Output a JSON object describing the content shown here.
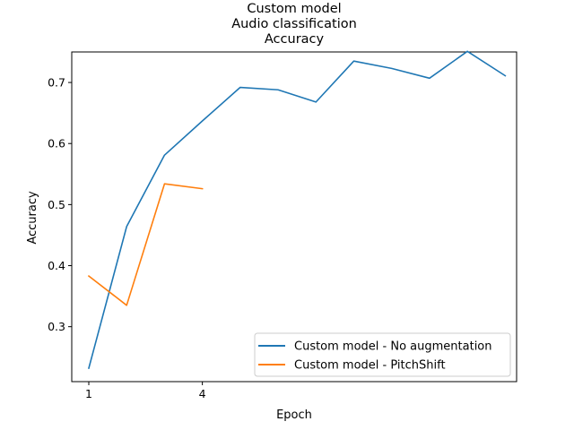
{
  "chart_data": {
    "type": "line",
    "title_lines": [
      "Custom model",
      "Audio classification",
      "Accuracy"
    ],
    "xlabel": "Epoch",
    "ylabel": "Accuracy",
    "xlim": [
      0.55,
      12.3
    ],
    "ylim": [
      0.21,
      0.75
    ],
    "xticks": [
      1,
      4
    ],
    "yticks": [
      0.3,
      0.4,
      0.5,
      0.6,
      0.7
    ],
    "series": [
      {
        "name": "Custom model - No augmentation",
        "color": "#1f77b4",
        "x": [
          1,
          2,
          3,
          4,
          5,
          6,
          7,
          8,
          9,
          10,
          11,
          12
        ],
        "y": [
          0.232,
          0.464,
          0.581,
          0.637,
          0.692,
          0.688,
          0.668,
          0.735,
          0.723,
          0.707,
          0.751,
          0.711
        ]
      },
      {
        "name": "Custom model - PitchShift",
        "color": "#ff7f0e",
        "x": [
          1,
          2,
          3,
          4
        ],
        "y": [
          0.383,
          0.335,
          0.534,
          0.526
        ]
      }
    ],
    "legend_position": "lower-right",
    "grid": false
  }
}
